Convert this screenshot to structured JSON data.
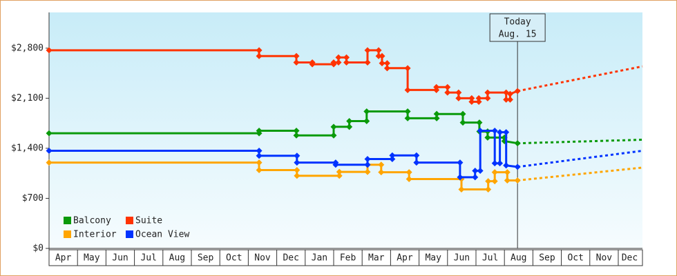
{
  "chart_data": {
    "type": "line",
    "step": true,
    "annotation": {
      "x": 16.46,
      "lines": [
        "Today",
        "Aug. 15"
      ]
    },
    "xlim": [
      0,
      20.85
    ],
    "ylim": [
      0,
      3300
    ],
    "yticks": [
      {
        "value": 0,
        "label": "$0"
      },
      {
        "value": 700,
        "label": "$700"
      },
      {
        "value": 1400,
        "label": "$1,400"
      },
      {
        "value": 2100,
        "label": "$2,100"
      },
      {
        "value": 2800,
        "label": "$2,800"
      }
    ],
    "xticks": [
      {
        "value": 0.5,
        "label": "Apr"
      },
      {
        "value": 1.5,
        "label": "May"
      },
      {
        "value": 2.5,
        "label": "Jun"
      },
      {
        "value": 3.5,
        "label": "Jul"
      },
      {
        "value": 4.5,
        "label": "Aug"
      },
      {
        "value": 5.5,
        "label": "Sep"
      },
      {
        "value": 6.5,
        "label": "Oct"
      },
      {
        "value": 7.5,
        "label": "Nov"
      },
      {
        "value": 8.5,
        "label": "Dec"
      },
      {
        "value": 9.5,
        "label": "Jan"
      },
      {
        "value": 10.5,
        "label": "Feb"
      },
      {
        "value": 11.5,
        "label": "Mar"
      },
      {
        "value": 12.5,
        "label": "Apr"
      },
      {
        "value": 13.5,
        "label": "May"
      },
      {
        "value": 14.5,
        "label": "Jun"
      },
      {
        "value": 15.5,
        "label": "Jul"
      },
      {
        "value": 16.5,
        "label": "Aug"
      },
      {
        "value": 17.5,
        "label": "Sep"
      },
      {
        "value": 18.5,
        "label": "Oct"
      },
      {
        "value": 19.5,
        "label": "Nov"
      },
      {
        "value": 20.4,
        "label": "Dec"
      }
    ],
    "legend": "lower-left",
    "series": [
      {
        "name": "Balcony",
        "color": "#0a9a0a",
        "x": [
          0,
          7.38,
          7.38,
          8.69,
          8.69,
          10.0,
          10.0,
          10.55,
          10.55,
          11.16,
          11.16,
          12.6,
          12.6,
          13.62,
          13.62,
          14.54,
          14.54,
          15.12,
          15.12,
          15.41,
          15.41,
          16.0,
          16.0,
          16.46
        ],
        "values": [
          1610,
          1610,
          1645,
          1645,
          1580,
          1580,
          1700,
          1700,
          1780,
          1780,
          1915,
          1915,
          1820,
          1820,
          1880,
          1880,
          1760,
          1760,
          1635,
          1635,
          1550,
          1550,
          1500,
          1470
        ],
        "forecast": {
          "x": [
            16.46,
            20.85
          ],
          "values": [
            1470,
            1520
          ]
        }
      },
      {
        "name": "Suite",
        "color": "#ff3300",
        "x": [
          0,
          7.38,
          7.38,
          8.69,
          8.69,
          9.25,
          9.25,
          10.0,
          10.0,
          10.17,
          10.17,
          10.45,
          10.45,
          11.19,
          11.19,
          11.58,
          11.58,
          11.7,
          11.7,
          11.88,
          11.88,
          12.6,
          12.6,
          13.61,
          13.61,
          14.0,
          14.0,
          14.39,
          14.39,
          14.85,
          14.85,
          15.1,
          15.1,
          15.41,
          15.41,
          16.06,
          16.06,
          16.2,
          16.2,
          16.46
        ],
        "values": [
          2770,
          2770,
          2690,
          2690,
          2600,
          2600,
          2575,
          2575,
          2600,
          2600,
          2670,
          2670,
          2600,
          2600,
          2770,
          2770,
          2690,
          2690,
          2590,
          2590,
          2520,
          2520,
          2215,
          2215,
          2255,
          2255,
          2180,
          2180,
          2100,
          2100,
          2050,
          2050,
          2100,
          2100,
          2180,
          2180,
          2080,
          2080,
          2160,
          2200
        ],
        "forecast": {
          "x": [
            16.46,
            20.85
          ],
          "values": [
            2200,
            2545
          ]
        }
      },
      {
        "name": "Interior",
        "color": "#ffa500",
        "x": [
          0,
          7.38,
          7.38,
          8.71,
          8.71,
          10.2,
          10.2,
          11.19,
          11.19,
          11.67,
          11.67,
          12.65,
          12.65,
          14.49,
          14.49,
          15.43,
          15.43,
          15.66,
          15.66,
          16.1,
          16.1,
          16.46
        ],
        "values": [
          1200,
          1200,
          1095,
          1095,
          1015,
          1015,
          1070,
          1070,
          1170,
          1170,
          1065,
          1065,
          970,
          970,
          825,
          825,
          940,
          940,
          1065,
          1065,
          950,
          950
        ],
        "forecast": {
          "x": [
            16.46,
            20.85
          ],
          "values": [
            950,
            1130
          ]
        }
      },
      {
        "name": "Ocean View",
        "color": "#0033ff",
        "x": [
          0,
          7.38,
          7.38,
          8.71,
          8.71,
          10.07,
          10.07,
          11.19,
          11.19,
          12.06,
          12.06,
          12.91,
          12.91,
          14.44,
          14.44,
          14.97,
          14.97,
          15.15,
          15.15,
          15.66,
          15.66,
          15.84,
          15.84,
          16.06,
          16.06,
          16.46
        ],
        "values": [
          1365,
          1365,
          1295,
          1295,
          1200,
          1200,
          1170,
          1170,
          1250,
          1250,
          1300,
          1300,
          1200,
          1200,
          995,
          995,
          1085,
          1085,
          1645,
          1645,
          1190,
          1190,
          1625,
          1625,
          1160,
          1140
        ],
        "forecast": {
          "x": [
            16.46,
            20.85
          ],
          "values": [
            1140,
            1365
          ]
        }
      }
    ]
  }
}
